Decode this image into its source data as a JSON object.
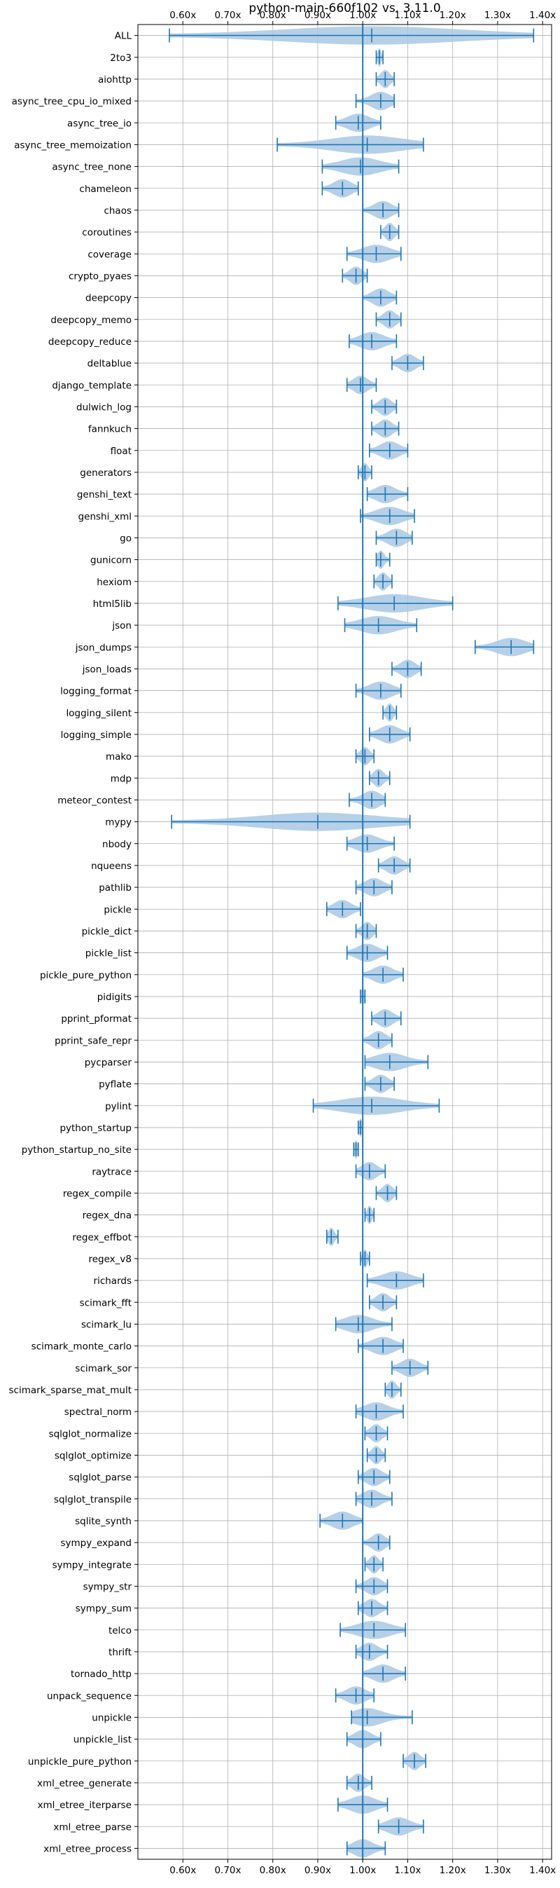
{
  "chart_data": {
    "type": "violin",
    "title": "python-main-660f102 vs. 3.11.0",
    "xlim": [
      0.5,
      1.42
    ],
    "xticks": [
      0.6,
      0.7,
      0.8,
      0.9,
      1.0,
      1.1,
      1.2,
      1.3,
      1.4
    ],
    "xtick_labels": [
      "0.60x",
      "0.70x",
      "0.80x",
      "0.90x",
      "1.00x",
      "1.10x",
      "1.20x",
      "1.30x",
      "1.40x"
    ],
    "reference_line": 1.0,
    "grid": true,
    "colors": {
      "fill": "#a9c8e4",
      "line": "#1f77b4"
    },
    "benchmarks": [
      {
        "name": "ALL",
        "min": 0.57,
        "max": 1.38,
        "mean": 1.02
      },
      {
        "name": "2to3",
        "min": 1.03,
        "max": 1.045,
        "mean": 1.037
      },
      {
        "name": "aiohttp",
        "min": 1.03,
        "max": 1.07,
        "mean": 1.05
      },
      {
        "name": "async_tree_cpu_io_mixed",
        "min": 0.985,
        "max": 1.07,
        "mean": 1.04
      },
      {
        "name": "async_tree_io",
        "min": 0.94,
        "max": 1.04,
        "mean": 0.99
      },
      {
        "name": "async_tree_memoization",
        "min": 0.81,
        "max": 1.135,
        "mean": 1.01
      },
      {
        "name": "async_tree_none",
        "min": 0.91,
        "max": 1.08,
        "mean": 0.995
      },
      {
        "name": "chameleon",
        "min": 0.91,
        "max": 0.99,
        "mean": 0.955
      },
      {
        "name": "chaos",
        "min": 1.0,
        "max": 1.08,
        "mean": 1.045
      },
      {
        "name": "coroutines",
        "min": 1.04,
        "max": 1.08,
        "mean": 1.06
      },
      {
        "name": "coverage",
        "min": 0.965,
        "max": 1.085,
        "mean": 1.03
      },
      {
        "name": "crypto_pyaes",
        "min": 0.955,
        "max": 1.01,
        "mean": 0.985
      },
      {
        "name": "deepcopy",
        "min": 1.0,
        "max": 1.075,
        "mean": 1.04
      },
      {
        "name": "deepcopy_memo",
        "min": 1.03,
        "max": 1.085,
        "mean": 1.06
      },
      {
        "name": "deepcopy_reduce",
        "min": 0.97,
        "max": 1.075,
        "mean": 1.02
      },
      {
        "name": "deltablue",
        "min": 1.065,
        "max": 1.135,
        "mean": 1.1
      },
      {
        "name": "django_template",
        "min": 0.965,
        "max": 1.03,
        "mean": 0.995
      },
      {
        "name": "dulwich_log",
        "min": 1.02,
        "max": 1.075,
        "mean": 1.05
      },
      {
        "name": "fannkuch",
        "min": 1.02,
        "max": 1.08,
        "mean": 1.05
      },
      {
        "name": "float",
        "min": 1.015,
        "max": 1.1,
        "mean": 1.06
      },
      {
        "name": "generators",
        "min": 0.99,
        "max": 1.02,
        "mean": 1.005
      },
      {
        "name": "genshi_text",
        "min": 1.01,
        "max": 1.1,
        "mean": 1.05
      },
      {
        "name": "genshi_xml",
        "min": 0.995,
        "max": 1.115,
        "mean": 1.06
      },
      {
        "name": "go",
        "min": 1.03,
        "max": 1.11,
        "mean": 1.075
      },
      {
        "name": "gunicorn",
        "min": 1.03,
        "max": 1.06,
        "mean": 1.04
      },
      {
        "name": "hexiom",
        "min": 1.025,
        "max": 1.065,
        "mean": 1.045
      },
      {
        "name": "html5lib",
        "min": 0.945,
        "max": 1.2,
        "mean": 1.07
      },
      {
        "name": "json",
        "min": 0.96,
        "max": 1.12,
        "mean": 1.035
      },
      {
        "name": "json_dumps",
        "min": 1.25,
        "max": 1.38,
        "mean": 1.33
      },
      {
        "name": "json_loads",
        "min": 1.065,
        "max": 1.13,
        "mean": 1.1
      },
      {
        "name": "logging_format",
        "min": 0.985,
        "max": 1.085,
        "mean": 1.04
      },
      {
        "name": "logging_silent",
        "min": 1.045,
        "max": 1.075,
        "mean": 1.06
      },
      {
        "name": "logging_simple",
        "min": 1.015,
        "max": 1.105,
        "mean": 1.06
      },
      {
        "name": "mako",
        "min": 0.985,
        "max": 1.025,
        "mean": 1.005
      },
      {
        "name": "mdp",
        "min": 1.015,
        "max": 1.06,
        "mean": 1.035
      },
      {
        "name": "meteor_contest",
        "min": 0.97,
        "max": 1.05,
        "mean": 1.02
      },
      {
        "name": "mypy",
        "min": 0.575,
        "max": 1.105,
        "mean": 0.9
      },
      {
        "name": "nbody",
        "min": 0.965,
        "max": 1.07,
        "mean": 1.01
      },
      {
        "name": "nqueens",
        "min": 1.035,
        "max": 1.105,
        "mean": 1.07
      },
      {
        "name": "pathlib",
        "min": 0.985,
        "max": 1.065,
        "mean": 1.025
      },
      {
        "name": "pickle",
        "min": 0.92,
        "max": 0.995,
        "mean": 0.955
      },
      {
        "name": "pickle_dict",
        "min": 0.985,
        "max": 1.03,
        "mean": 1.01
      },
      {
        "name": "pickle_list",
        "min": 0.965,
        "max": 1.055,
        "mean": 1.01
      },
      {
        "name": "pickle_pure_python",
        "min": 1.0,
        "max": 1.09,
        "mean": 1.045
      },
      {
        "name": "pidigits",
        "min": 0.995,
        "max": 1.005,
        "mean": 1.0
      },
      {
        "name": "pprint_pformat",
        "min": 1.02,
        "max": 1.085,
        "mean": 1.05
      },
      {
        "name": "pprint_safe_repr",
        "min": 1.0,
        "max": 1.065,
        "mean": 1.035
      },
      {
        "name": "pycparser",
        "min": 1.005,
        "max": 1.145,
        "mean": 1.06
      },
      {
        "name": "pyflate",
        "min": 1.005,
        "max": 1.07,
        "mean": 1.04
      },
      {
        "name": "pylint",
        "min": 0.89,
        "max": 1.17,
        "mean": 1.02
      },
      {
        "name": "python_startup",
        "min": 0.99,
        "max": 1.0,
        "mean": 0.995
      },
      {
        "name": "python_startup_no_site",
        "min": 0.98,
        "max": 0.99,
        "mean": 0.985
      },
      {
        "name": "raytrace",
        "min": 0.985,
        "max": 1.05,
        "mean": 1.015
      },
      {
        "name": "regex_compile",
        "min": 1.03,
        "max": 1.075,
        "mean": 1.055
      },
      {
        "name": "regex_dna",
        "min": 1.005,
        "max": 1.025,
        "mean": 1.015
      },
      {
        "name": "regex_effbot",
        "min": 0.92,
        "max": 0.945,
        "mean": 0.93
      },
      {
        "name": "regex_v8",
        "min": 0.995,
        "max": 1.015,
        "mean": 1.005
      },
      {
        "name": "richards",
        "min": 1.01,
        "max": 1.135,
        "mean": 1.075
      },
      {
        "name": "scimark_fft",
        "min": 1.015,
        "max": 1.075,
        "mean": 1.045
      },
      {
        "name": "scimark_lu",
        "min": 0.94,
        "max": 1.065,
        "mean": 0.99
      },
      {
        "name": "scimark_monte_carlo",
        "min": 0.99,
        "max": 1.09,
        "mean": 1.045
      },
      {
        "name": "scimark_sor",
        "min": 1.065,
        "max": 1.145,
        "mean": 1.105
      },
      {
        "name": "scimark_sparse_mat_mult",
        "min": 1.05,
        "max": 1.085,
        "mean": 1.065
      },
      {
        "name": "spectral_norm",
        "min": 0.985,
        "max": 1.09,
        "mean": 1.03
      },
      {
        "name": "sqlglot_normalize",
        "min": 1.005,
        "max": 1.055,
        "mean": 1.03
      },
      {
        "name": "sqlglot_optimize",
        "min": 1.01,
        "max": 1.05,
        "mean": 1.03
      },
      {
        "name": "sqlglot_parse",
        "min": 0.99,
        "max": 1.06,
        "mean": 1.025
      },
      {
        "name": "sqlglot_transpile",
        "min": 0.985,
        "max": 1.065,
        "mean": 1.02
      },
      {
        "name": "sqlite_synth",
        "min": 0.905,
        "max": 1.0,
        "mean": 0.955
      },
      {
        "name": "sympy_expand",
        "min": 1.0,
        "max": 1.06,
        "mean": 1.035
      },
      {
        "name": "sympy_integrate",
        "min": 1.005,
        "max": 1.045,
        "mean": 1.025
      },
      {
        "name": "sympy_str",
        "min": 0.985,
        "max": 1.055,
        "mean": 1.025
      },
      {
        "name": "sympy_sum",
        "min": 0.99,
        "max": 1.055,
        "mean": 1.02
      },
      {
        "name": "telco",
        "min": 0.95,
        "max": 1.095,
        "mean": 1.025
      },
      {
        "name": "thrift",
        "min": 0.985,
        "max": 1.055,
        "mean": 1.015
      },
      {
        "name": "tornado_http",
        "min": 1.0,
        "max": 1.095,
        "mean": 1.045
      },
      {
        "name": "unpack_sequence",
        "min": 0.94,
        "max": 1.025,
        "mean": 0.985
      },
      {
        "name": "unpickle",
        "min": 0.975,
        "max": 1.11,
        "mean": 1.01
      },
      {
        "name": "unpickle_list",
        "min": 0.965,
        "max": 1.04,
        "mean": 1.0
      },
      {
        "name": "unpickle_pure_python",
        "min": 1.09,
        "max": 1.14,
        "mean": 1.115
      },
      {
        "name": "xml_etree_generate",
        "min": 0.965,
        "max": 1.02,
        "mean": 0.99
      },
      {
        "name": "xml_etree_iterparse",
        "min": 0.945,
        "max": 1.055,
        "mean": 1.0
      },
      {
        "name": "xml_etree_parse",
        "min": 1.035,
        "max": 1.135,
        "mean": 1.08
      },
      {
        "name": "xml_etree_process",
        "min": 0.965,
        "max": 1.05,
        "mean": 1.0
      }
    ]
  }
}
